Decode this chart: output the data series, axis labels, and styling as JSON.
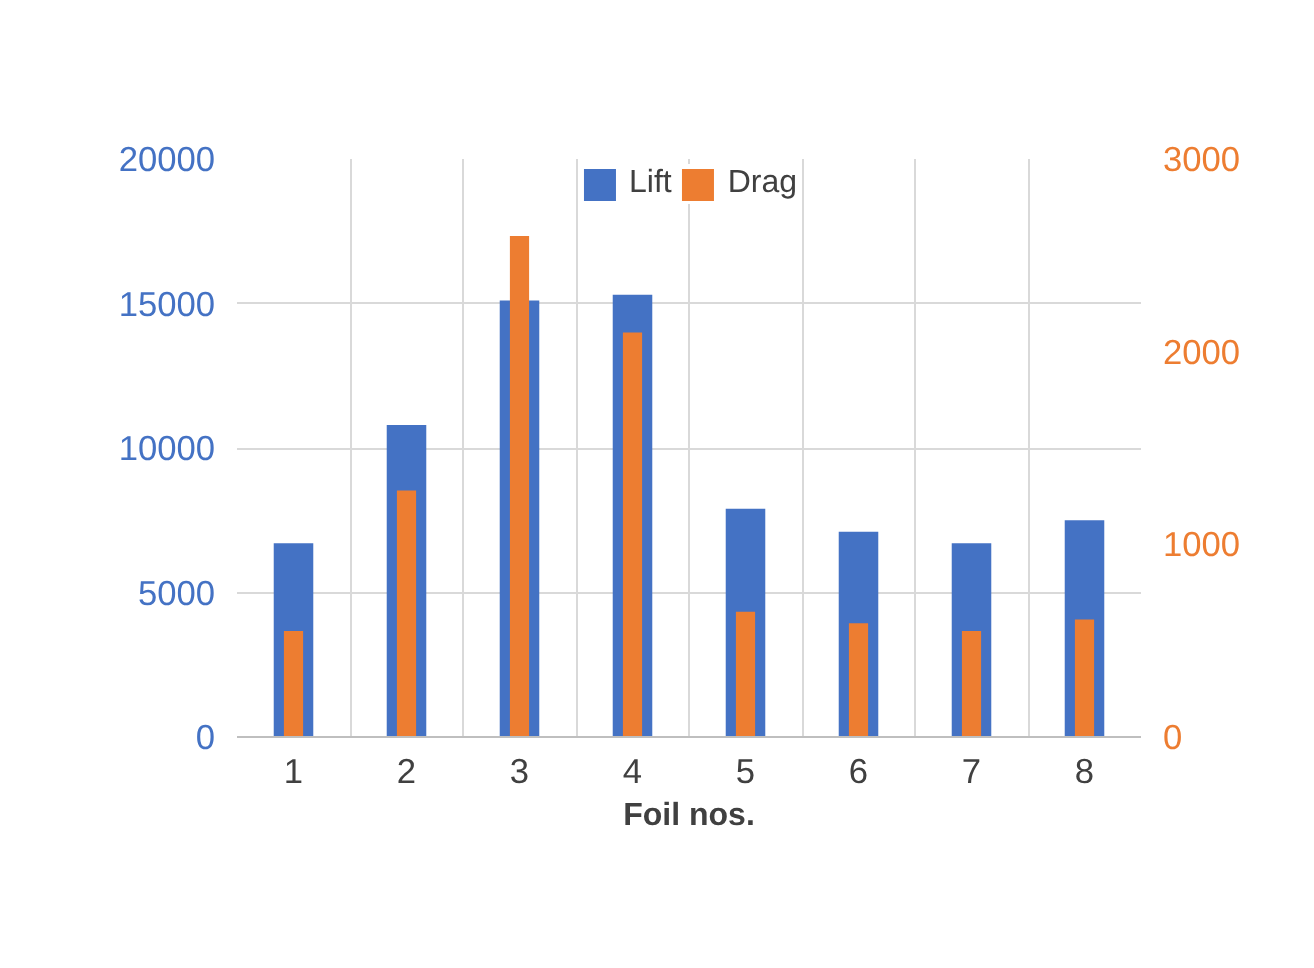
{
  "chart_data": {
    "type": "bar",
    "xlabel": "Foil nos.",
    "categories": [
      "1",
      "2",
      "3",
      "4",
      "5",
      "6",
      "7",
      "8"
    ],
    "series": [
      {
        "name": "Lift",
        "color": "#4472c4",
        "values": [
          6700,
          10800,
          15100,
          15300,
          7900,
          7100,
          6700,
          7500
        ]
      },
      {
        "name": "Drag",
        "color": "#ed7d31",
        "axis": "y2",
        "values": [
          550,
          1280,
          2600,
          2100,
          650,
          590,
          550,
          610
        ]
      }
    ],
    "ylim": [
      0,
      20000
    ],
    "yticks": [
      0,
      5000,
      10000,
      15000,
      20000
    ],
    "y2lim": [
      0,
      3000
    ],
    "y2ticks": [
      0,
      1000,
      2000,
      3000
    ],
    "grid": true,
    "legend": "top"
  }
}
